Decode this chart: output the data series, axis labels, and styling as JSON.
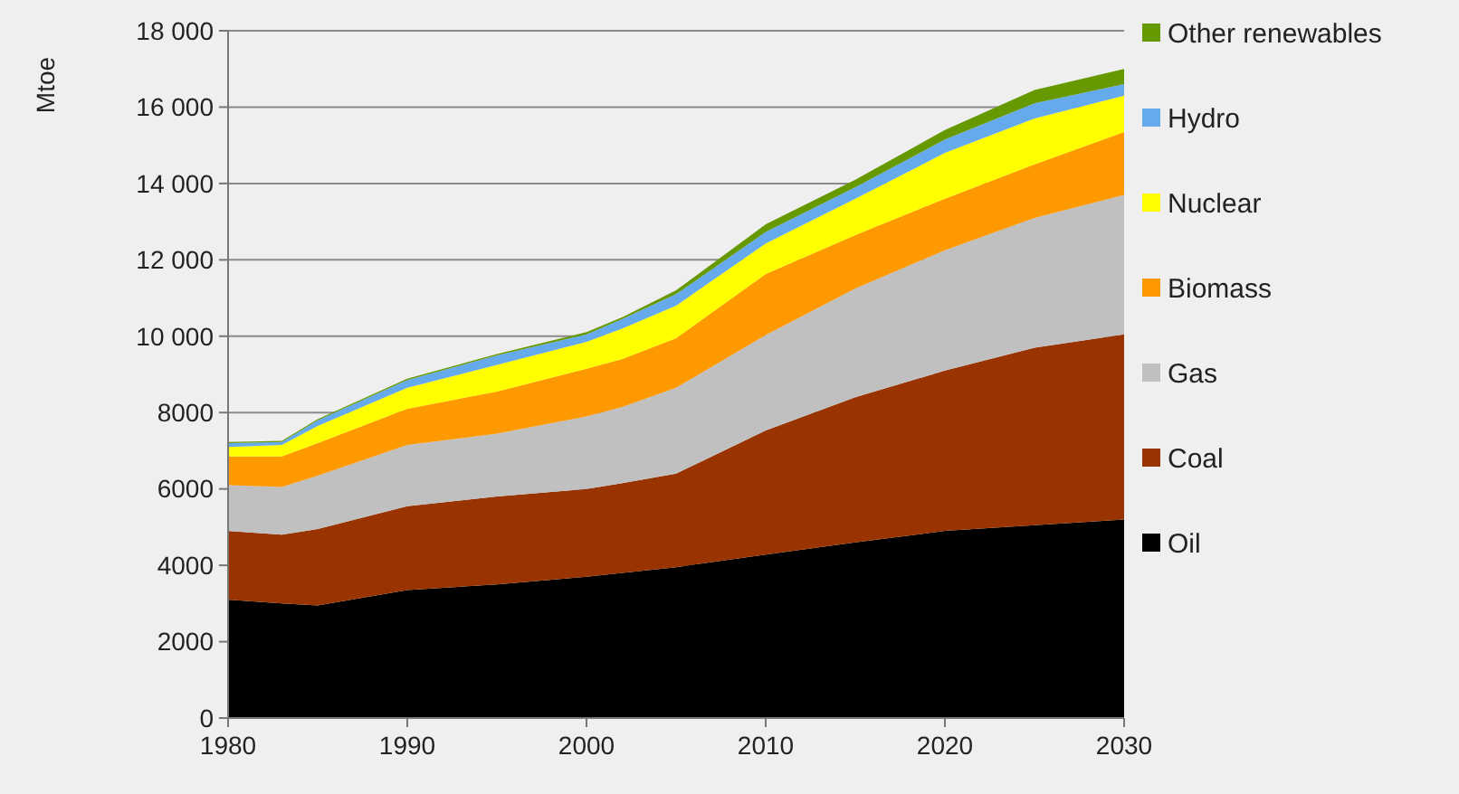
{
  "chart_data": {
    "type": "area",
    "stacked": true,
    "ylabel": "Mtoe",
    "x": [
      1980,
      1983,
      1985,
      1990,
      1995,
      2000,
      2002,
      2005,
      2010,
      2015,
      2020,
      2025,
      2030
    ],
    "series": [
      {
        "name": "Oil",
        "color": "#000000",
        "values": [
          3100,
          3000,
          2950,
          3350,
          3500,
          3700,
          3800,
          3950,
          4280,
          4600,
          4900,
          5050,
          5200
        ]
      },
      {
        "name": "Coal",
        "color": "#993300",
        "values": [
          1800,
          1800,
          2000,
          2200,
          2300,
          2300,
          2350,
          2450,
          3250,
          3800,
          4200,
          4650,
          4850
        ]
      },
      {
        "name": "Gas",
        "color": "#c0c0c0",
        "values": [
          1200,
          1250,
          1400,
          1600,
          1650,
          1900,
          2000,
          2250,
          2500,
          2850,
          3150,
          3400,
          3650
        ]
      },
      {
        "name": "Biomass",
        "color": "#ff9900",
        "values": [
          750,
          800,
          850,
          950,
          1100,
          1250,
          1250,
          1300,
          1600,
          1400,
          1350,
          1400,
          1650
        ]
      },
      {
        "name": "Nuclear",
        "color": "#ffff00",
        "values": [
          250,
          300,
          450,
          550,
          700,
          700,
          800,
          850,
          800,
          950,
          1200,
          1200,
          950
        ]
      },
      {
        "name": "Hydro",
        "color": "#66aaee",
        "values": [
          100,
          80,
          150,
          200,
          250,
          200,
          250,
          300,
          300,
          300,
          350,
          400,
          300
        ]
      },
      {
        "name": "Other renewables",
        "color": "#669900",
        "values": [
          30,
          30,
          30,
          40,
          30,
          60,
          50,
          100,
          200,
          200,
          250,
          350,
          400
        ]
      }
    ],
    "xlim": [
      1980,
      2030
    ],
    "xticks": [
      1980,
      1990,
      2000,
      2010,
      2020,
      2030
    ],
    "ylim": [
      0,
      18000
    ],
    "yticks": [
      0,
      2000,
      4000,
      6000,
      8000,
      {
        "value": 10000,
        "label": "10 000"
      },
      {
        "value": 12000,
        "label": "12 000"
      },
      {
        "value": 14000,
        "label": "14 000"
      },
      {
        "value": 16000,
        "label": "16 000"
      },
      {
        "value": 18000,
        "label": "18 000"
      }
    ],
    "grid": "y",
    "legend": "right"
  }
}
